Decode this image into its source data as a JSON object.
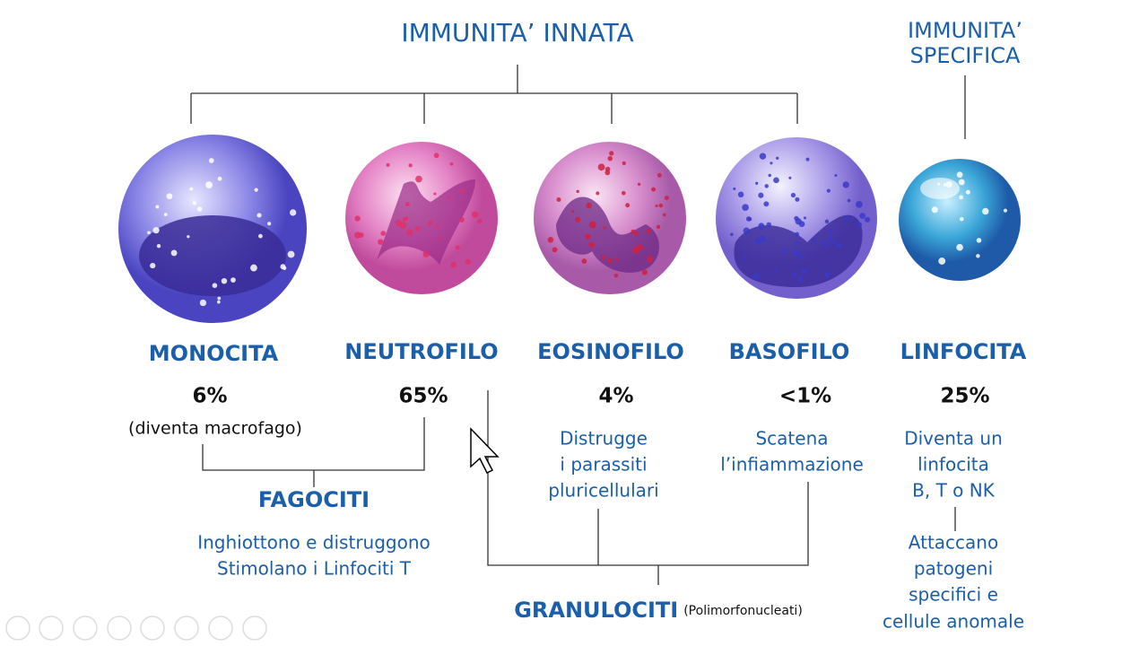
{
  "header": {
    "innate": "IMMUNITA’ INNATA",
    "specific": [
      "IMMUNITA’",
      "SPECIFICA"
    ]
  },
  "cells": [
    {
      "name": "MONOCITA",
      "percent": "6%",
      "note": "(diventa macrofago)"
    },
    {
      "name": "NEUTROFILO",
      "percent": "65%"
    },
    {
      "name": "EOSINOFILO",
      "percent": "4%",
      "description": [
        "Distrugge",
        "i parassiti",
        "pluricellulari"
      ]
    },
    {
      "name": "BASOFILO",
      "percent": "<1%",
      "description": [
        "Scatena",
        "l’infiammazione"
      ]
    },
    {
      "name": "LINFOCITA",
      "percent": "25%",
      "description": [
        "Diventa un",
        "linfocita",
        "B, T o NK"
      ],
      "role": [
        "Attaccano",
        "patogeni",
        "specifici e",
        "cellule anomale"
      ]
    }
  ],
  "groups": {
    "fagociti": {
      "title": "FAGOCITI",
      "description": [
        "Inghiottono e distruggono",
        "Stimolano i Linfociti T"
      ]
    },
    "granulociti": {
      "title": "GRANULOCITI",
      "note": "(Polimorfonucleati)"
    }
  }
}
